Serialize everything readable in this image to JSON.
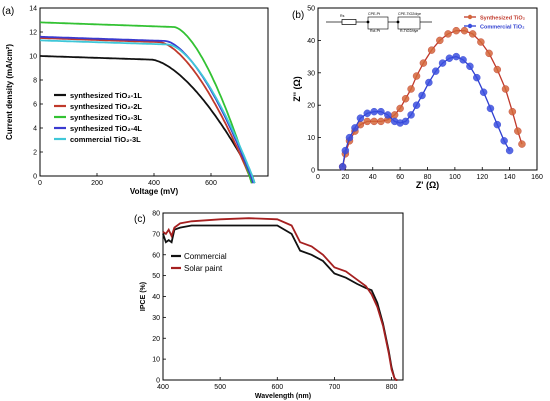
{
  "chart_data": [
    {
      "type": "line",
      "panel_label": "(a)",
      "xlabel": "Voltage (mV)",
      "ylabel": "Current density (mA/cm²)",
      "xlim": [
        0,
        800
      ],
      "ylim": [
        0,
        14
      ],
      "xticks": [
        "0",
        "200",
        "400",
        "600"
      ],
      "yticks": [
        "0",
        "2",
        "4",
        "6",
        "8",
        "10",
        "12",
        "14"
      ],
      "legend_position": "lower-left",
      "series": [
        {
          "name": "synthesized TiO₂-1L",
          "color": "#111111",
          "jsc": 10.0,
          "voc": 745,
          "knee_v": 390
        },
        {
          "name": "synthesized TiO₂-2L",
          "color": "#c0392b",
          "jsc": 11.5,
          "voc": 735,
          "knee_v": 420
        },
        {
          "name": "synthesized TiO₂-3L",
          "color": "#33c233",
          "jsc": 12.8,
          "voc": 735,
          "knee_v": 470
        },
        {
          "name": "synthesized TiO₂-4L",
          "color": "#3a3ad0",
          "jsc": 11.6,
          "voc": 740,
          "knee_v": 440
        },
        {
          "name": "commercial TiO₂-3L",
          "color": "#3fc7d8",
          "jsc": 11.3,
          "voc": 745,
          "knee_v": 450
        }
      ]
    },
    {
      "type": "scatter",
      "panel_label": "(b)",
      "xlabel": "Z' (Ω)",
      "ylabel": "Z'' (Ω)",
      "xlim": [
        0,
        160
      ],
      "ylim": [
        0,
        50
      ],
      "xticks": [
        "0",
        "20",
        "40",
        "60",
        "80",
        "100",
        "120",
        "140",
        "160"
      ],
      "yticks": [
        "0",
        "10",
        "20",
        "30",
        "40",
        "50"
      ],
      "legend_position": "top-right",
      "circuit_labels": [
        "Rs",
        "CPE-Pt",
        "Rct-Pt",
        "CPE-TiO2/dye",
        "R-TiO2/dye"
      ],
      "series": [
        {
          "name": "Synthesized TiO₂",
          "color": "#c0392b",
          "fill": "#d4673a",
          "x": [
            18,
            20,
            23,
            27,
            31,
            36,
            41,
            46,
            51,
            56,
            60,
            64,
            68,
            72,
            77,
            83,
            89,
            95,
            101,
            107,
            113,
            119,
            125,
            131,
            137,
            142,
            146,
            149
          ],
          "y": [
            1,
            5,
            9,
            12,
            14,
            15,
            15,
            15,
            15.5,
            17,
            19,
            22,
            25,
            29,
            33,
            37,
            40,
            42,
            43,
            43,
            42,
            39.5,
            36,
            31,
            25,
            18,
            12,
            8
          ]
        },
        {
          "name": "Commercial TiO₂",
          "color": "#2f3fd0",
          "fill": "#3a4fe0",
          "x": [
            18,
            20,
            23,
            27,
            31,
            36,
            41,
            46,
            51,
            56,
            60,
            64,
            68,
            72,
            76,
            81,
            86,
            91,
            96,
            101,
            106,
            111,
            116,
            121,
            126,
            131,
            136,
            140
          ],
          "y": [
            1,
            6,
            10,
            13,
            16,
            17.5,
            18,
            18,
            17,
            15,
            14.5,
            15,
            17,
            20,
            23,
            27,
            30.5,
            33,
            34.5,
            35,
            34,
            32,
            28.5,
            24,
            19,
            14,
            9,
            6
          ]
        }
      ]
    },
    {
      "type": "line",
      "panel_label": "(c)",
      "xlabel": "Wavelength (nm)",
      "ylabel": "IPCE (%)",
      "xlim": [
        400,
        820
      ],
      "ylim": [
        0,
        80
      ],
      "xticks": [
        "400",
        "500",
        "600",
        "700",
        "800"
      ],
      "yticks": [
        "0",
        "10",
        "20",
        "30",
        "40",
        "50",
        "60",
        "70",
        "80"
      ],
      "legend_position": "upper-left",
      "series": [
        {
          "name": "Commercial",
          "color": "#111111",
          "x": [
            400,
            405,
            410,
            415,
            420,
            430,
            450,
            500,
            550,
            600,
            625,
            640,
            660,
            680,
            700,
            720,
            740,
            755,
            765,
            775,
            785,
            795,
            800,
            805,
            808,
            810
          ],
          "y": [
            70,
            66,
            67,
            66,
            72,
            73,
            74,
            74,
            74,
            74,
            70,
            62,
            60,
            57,
            51,
            49,
            46,
            44,
            43,
            37,
            27,
            14,
            6,
            1,
            0,
            0
          ]
        },
        {
          "name": "Solar paint",
          "color": "#a52020",
          "x": [
            400,
            405,
            410,
            415,
            420,
            430,
            450,
            500,
            550,
            600,
            625,
            640,
            660,
            680,
            700,
            720,
            740,
            755,
            765,
            775,
            785,
            795,
            800,
            805,
            808,
            810
          ],
          "y": [
            71,
            70,
            72,
            69,
            73,
            75,
            76,
            77,
            77.5,
            77,
            74,
            66,
            64,
            60,
            54,
            52,
            48,
            45,
            41,
            35,
            26,
            13,
            5,
            1,
            0,
            0
          ]
        }
      ]
    }
  ]
}
